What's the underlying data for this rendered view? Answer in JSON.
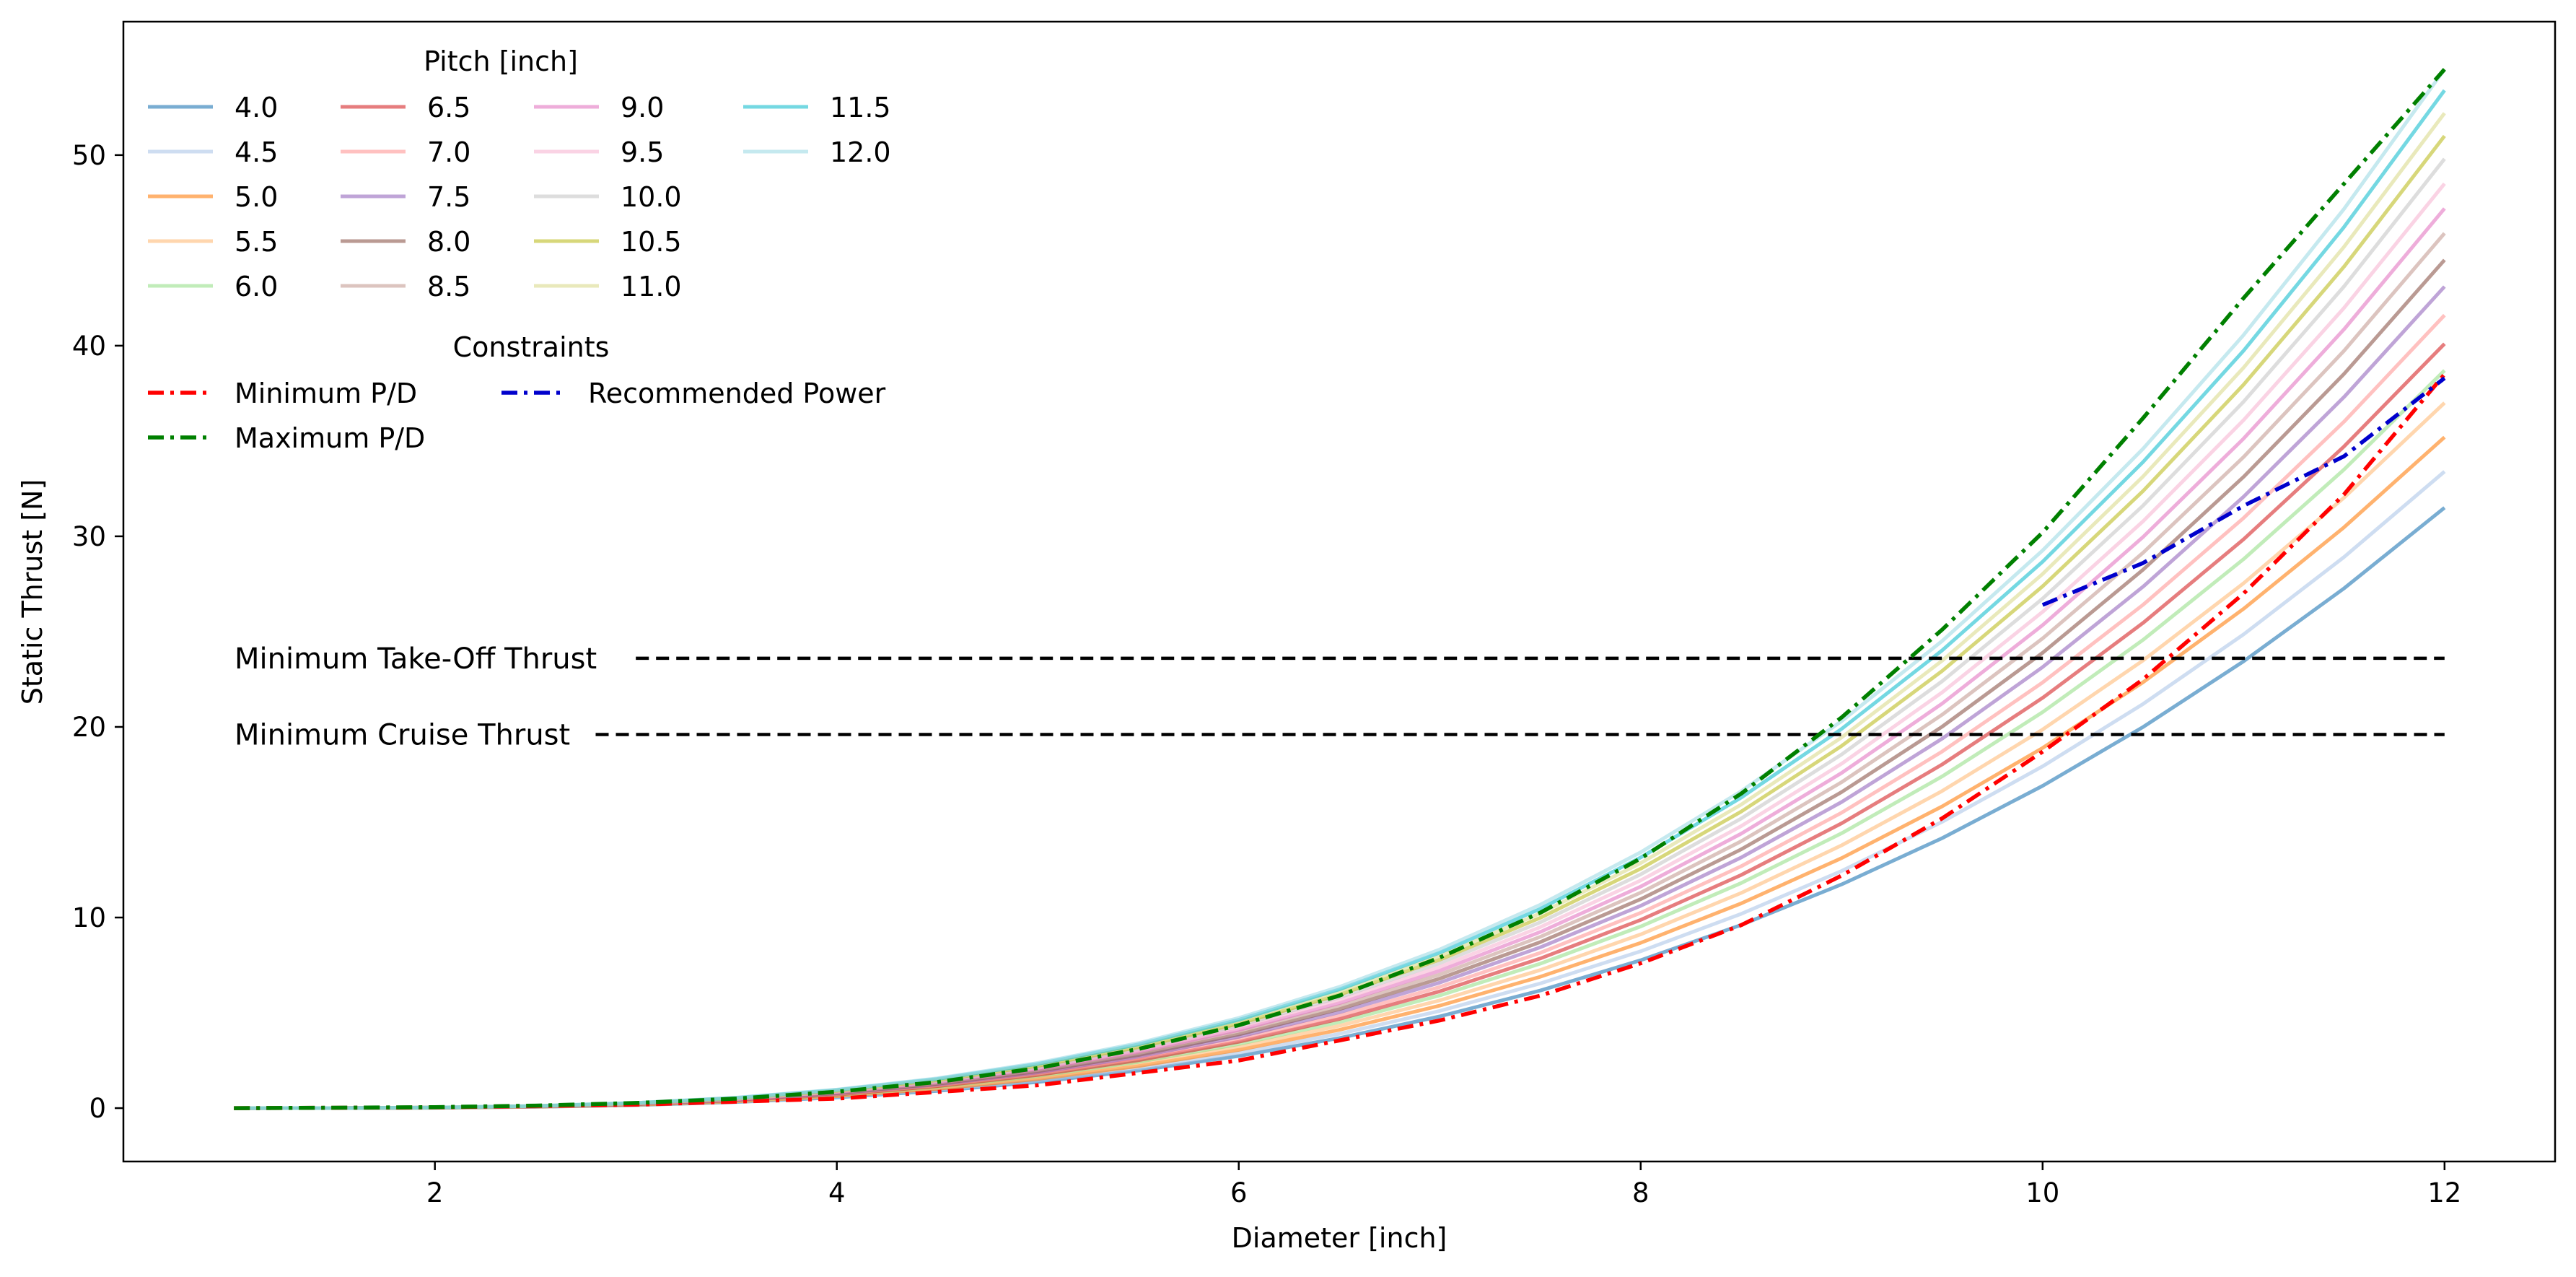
{
  "chart_data": {
    "type": "line",
    "xlabel": "Diameter [inch]",
    "ylabel": "Static Thrust [N]",
    "xlim": [
      0.45,
      12.55
    ],
    "ylim": [
      -2.8,
      57.0
    ],
    "x_ticks": [
      2,
      4,
      6,
      8,
      10,
      12
    ],
    "y_ticks": [
      0,
      10,
      20,
      30,
      40,
      50
    ],
    "grid": false,
    "x": [
      1,
      1.5,
      2,
      2.5,
      3,
      3.5,
      4,
      4.5,
      5,
      5.5,
      6,
      6.5,
      7,
      7.5,
      8,
      8.5,
      9,
      9.5,
      10,
      10.5,
      11,
      11.5,
      12
    ],
    "pitch_legend": {
      "title": "Pitch [inch]",
      "placement": "upper-left",
      "columns": 4
    },
    "series": [
      {
        "name": "4.0",
        "color": "#1f77b4",
        "opacity": 0.6,
        "end_value": 31.5
      },
      {
        "name": "4.5",
        "color": "#aec7e8",
        "opacity": 0.6,
        "end_value": 33.4
      },
      {
        "name": "5.0",
        "color": "#ff7f0e",
        "opacity": 0.6,
        "end_value": 35.2
      },
      {
        "name": "5.5",
        "color": "#ffbb78",
        "opacity": 0.6,
        "end_value": 37.0
      },
      {
        "name": "6.0",
        "color": "#98df8a",
        "opacity": 0.6,
        "end_value": 38.7
      },
      {
        "name": "6.5",
        "color": "#d62728",
        "opacity": 0.6,
        "end_value": 40.1
      },
      {
        "name": "7.0",
        "color": "#ff9896",
        "opacity": 0.6,
        "end_value": 41.6
      },
      {
        "name": "7.5",
        "color": "#9467bd",
        "opacity": 0.6,
        "end_value": 43.1
      },
      {
        "name": "8.0",
        "color": "#8c564b",
        "opacity": 0.6,
        "end_value": 44.5
      },
      {
        "name": "8.5",
        "color": "#c49c94",
        "opacity": 0.6,
        "end_value": 45.9
      },
      {
        "name": "9.0",
        "color": "#e377c2",
        "opacity": 0.6,
        "end_value": 47.2
      },
      {
        "name": "9.5",
        "color": "#f7b6d2",
        "opacity": 0.6,
        "end_value": 48.5
      },
      {
        "name": "10.0",
        "color": "#c7c7c7",
        "opacity": 0.6,
        "end_value": 49.8
      },
      {
        "name": "10.5",
        "color": "#bcbd22",
        "opacity": 0.6,
        "end_value": 51.0
      },
      {
        "name": "11.0",
        "color": "#dbdb8d",
        "opacity": 0.6,
        "end_value": 52.2
      },
      {
        "name": "11.5",
        "color": "#17becf",
        "opacity": 0.6,
        "end_value": 53.4
      },
      {
        "name": "12.0",
        "color": "#9edae5",
        "opacity": 0.6,
        "end_value": 54.5
      }
    ],
    "constraints_legend": {
      "title": "Constraints",
      "columns": 2
    },
    "constraints": [
      {
        "name": "Minimum P/D",
        "color": "#ff0000",
        "style": "dashdot",
        "x": [
          1,
          2,
          3,
          4,
          5,
          6,
          7,
          7.5,
          8,
          8.5,
          9,
          9.5,
          10,
          10.5,
          11,
          11.5,
          12
        ],
        "y": [
          0,
          0.04,
          0.18,
          0.5,
          1.2,
          2.5,
          4.6,
          5.9,
          7.6,
          9.6,
          12.2,
          15.2,
          18.7,
          22.5,
          27.0,
          32.2,
          38.5
        ]
      },
      {
        "name": "Maximum P/D",
        "color": "#008000",
        "style": "dashdot",
        "x": [
          1,
          1.5,
          2,
          2.5,
          3,
          3.5,
          4,
          4.5,
          5,
          5.5,
          6,
          6.5,
          7,
          7.5,
          8,
          8.5,
          9,
          9.5,
          10,
          10.5,
          11,
          11.5,
          12
        ],
        "y": [
          0,
          0.02,
          0.05,
          0.13,
          0.27,
          0.5,
          0.86,
          1.37,
          2.1,
          3.1,
          4.35,
          5.9,
          7.9,
          10.25,
          13.1,
          16.5,
          20.5,
          25.1,
          30.2,
          36.2,
          42.5,
          48.5,
          54.5
        ]
      },
      {
        "name": "Recommended Power",
        "color": "#0000cc",
        "style": "dashdot",
        "x": [
          10,
          10.5,
          11,
          11.5,
          12
        ],
        "y": [
          26.4,
          28.6,
          31.6,
          34.2,
          38.3
        ]
      }
    ],
    "reference_lines": [
      {
        "label": "Minimum Take-Off Thrust",
        "y": 23.6,
        "x_start": 3.0,
        "x_end": 12
      },
      {
        "label": "Minimum Cruise Thrust",
        "y": 19.6,
        "x_start": 2.8,
        "x_end": 12
      }
    ]
  }
}
